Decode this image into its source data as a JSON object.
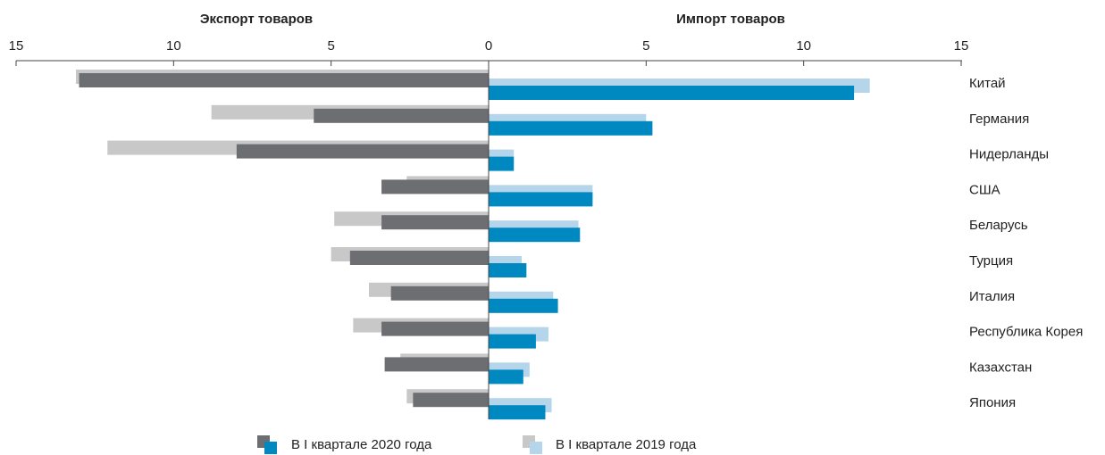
{
  "chart_data": {
    "type": "butterfly_bar",
    "categories": [
      "Китай",
      "Германия",
      "Нидерланды",
      "США",
      "Беларусь",
      "Турция",
      "Италия",
      "Республика Корея",
      "Казахстан",
      "Япония"
    ],
    "legend": [
      "В I квартале 2020 года",
      "В I квартале 2019 года"
    ],
    "panels": [
      {
        "title": "Экспорт товаров",
        "xlim": [
          0,
          15
        ],
        "xticks": [
          15,
          10,
          5,
          0
        ],
        "series": [
          {
            "color": "#c8c8c8",
            "values": [
              13.1,
              8.8,
              12.1,
              2.6,
              4.9,
              5.0,
              3.8,
              4.3,
              2.8,
              2.6
            ]
          },
          {
            "color": "#6d6e71",
            "values": [
              13.0,
              5.55,
              8.0,
              3.4,
              3.4,
              4.4,
              3.1,
              3.4,
              3.3,
              2.4
            ]
          }
        ]
      },
      {
        "title": "Импорт товаров",
        "xlim": [
          0,
          15
        ],
        "xticks": [
          5,
          10,
          15
        ],
        "series": [
          {
            "color": "#b5d5ea",
            "values": [
              12.1,
              5.0,
              0.8,
              3.3,
              2.85,
              1.05,
              2.05,
              1.9,
              1.3,
              2.0
            ]
          },
          {
            "color": "#0089c0",
            "values": [
              11.6,
              5.2,
              0.8,
              3.3,
              2.9,
              1.2,
              2.2,
              1.5,
              1.1,
              1.8
            ]
          }
        ]
      }
    ]
  }
}
